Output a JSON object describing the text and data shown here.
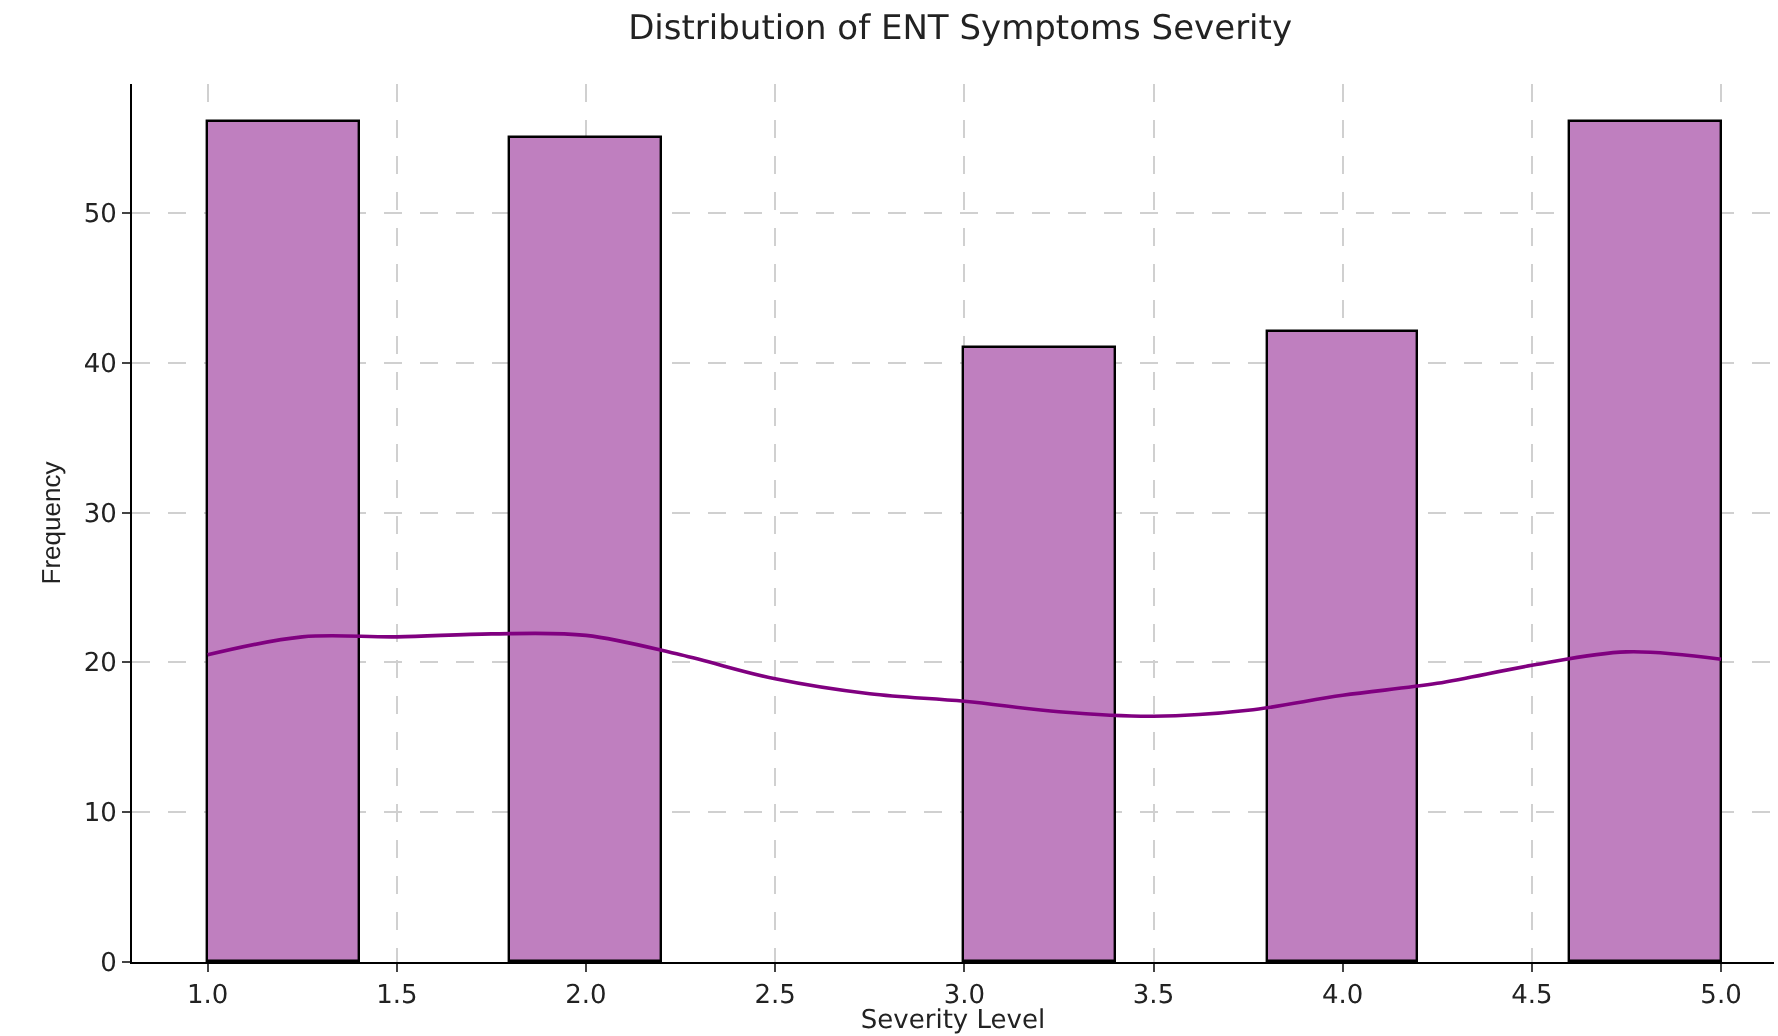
{
  "chart_data": {
    "type": "histogram",
    "title": "Distribution of ENT Symptoms Severity",
    "xlabel": "Severity Level",
    "ylabel": "Frequency",
    "bins": [
      1.0,
      1.4,
      1.8,
      2.2,
      2.6,
      3.0,
      3.4,
      3.8,
      4.2,
      4.6,
      5.0
    ],
    "values": [
      56,
      0,
      55,
      0,
      0,
      41,
      0,
      42,
      0,
      56
    ],
    "color": "#bf7fbf",
    "series": [
      {
        "type": "line",
        "color": "#800080",
        "x": [
          1.0,
          1.25,
          1.5,
          1.75,
          2.0,
          2.25,
          2.5,
          2.75,
          3.0,
          3.25,
          3.5,
          3.75,
          4.0,
          4.25,
          4.5,
          4.75,
          5.0
        ],
        "values": [
          20.5,
          21.7,
          21.7,
          21.9,
          21.8,
          20.5,
          18.9,
          17.9,
          17.4,
          16.7,
          16.4,
          16.8,
          17.8,
          18.6,
          19.8,
          20.7,
          20.2
        ]
      }
    ],
    "xlim": [
      0.8,
      5.14
    ],
    "ylim": [
      0,
      58.6
    ],
    "xticks": [
      {
        "value": 1,
        "label": "1.0"
      },
      {
        "value": 1.5,
        "label": "1.5"
      },
      {
        "value": 2,
        "label": "2.0"
      },
      {
        "value": 2.5,
        "label": "2.5"
      },
      {
        "value": 3,
        "label": "3.0"
      },
      {
        "value": 3.5,
        "label": "3.5"
      },
      {
        "value": 4,
        "label": "4.0"
      },
      {
        "value": 4.5,
        "label": "4.5"
      },
      {
        "value": 5,
        "label": "5.0"
      }
    ],
    "yticks": [
      0,
      10,
      20,
      30,
      40,
      50
    ],
    "grid": true
  }
}
